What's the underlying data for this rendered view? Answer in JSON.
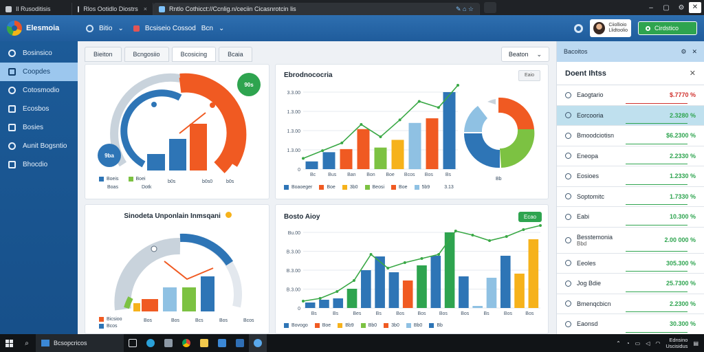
{
  "browser": {
    "tabs": [
      {
        "title": "Il Rusoditisis",
        "active": false
      },
      {
        "title": "Rlos Ootidlo Diostrs",
        "active": false
      },
      {
        "title": "Rntlo Cothicct://Ccnlig.n/ceciin Cicasnrotcin lis",
        "active": true
      }
    ]
  },
  "app": {
    "brand": "Elesmoia",
    "nav": [
      {
        "label": "Bitio"
      },
      {
        "label": "Bcsiseio Cossod"
      },
      {
        "label": "Bcn"
      }
    ],
    "user": {
      "line1": "Ciiollioio",
      "line2": "Llidtoolio"
    },
    "cta_label": "Cirdstico"
  },
  "sidebar": {
    "items": [
      {
        "label": "Bosinsico"
      },
      {
        "label": "Coopdes"
      },
      {
        "label": "Cotosmodio"
      },
      {
        "label": "Ecosbos"
      },
      {
        "label": "Bosies"
      },
      {
        "label": "Aunit Bogsntio"
      },
      {
        "label": "Bhocdio"
      }
    ],
    "active_index": 1
  },
  "toolbar": {
    "tabs": [
      {
        "label": "Bieiton"
      },
      {
        "label": "Bcngosiio"
      },
      {
        "label": "Bcosicing"
      },
      {
        "label": "Bcaia"
      }
    ],
    "active_index": 2,
    "dropdown_label": "Beaton"
  },
  "colors": {
    "blue": "#2e75b6",
    "orange": "#f05a22",
    "green": "#7cc242",
    "lightblue": "#8fc1e3",
    "yellow": "#f6b21b",
    "darkgreen": "#2ea44f",
    "grey": "#c9d3dc"
  },
  "gauge1": {
    "badge_top": "90s",
    "badge_left": "9ba",
    "legend": [
      {
        "label": "Boeis",
        "sub": "Boas",
        "color": "#2e75b6"
      },
      {
        "label": "Boei",
        "sub": "Dotk",
        "color": "#7cc242"
      }
    ],
    "ticks": [
      "b0s",
      "b0s0",
      "b0s"
    ]
  },
  "gauge2": {
    "title": "Sinodeta Unponlain Inmsqani",
    "legend": [
      {
        "label": "Bicsioo",
        "color": "#f05a22"
      },
      {
        "label": "Bcos",
        "color": "#2e75b6"
      }
    ],
    "ticks": [
      "Bos",
      "Bos",
      "Bcs",
      "Bos",
      "Bcos"
    ]
  },
  "chart1": {
    "title": "Ebrodnococria",
    "button": "Eaio",
    "legend": [
      {
        "label": "Boaoeger",
        "color": "#2e75b6"
      },
      {
        "label": "Boe",
        "color": "#f05a22"
      },
      {
        "label": "3b0",
        "color": "#f6b21b"
      },
      {
        "label": "Beosi",
        "color": "#7cc242"
      },
      {
        "label": "Boe",
        "color": "#f05a22"
      },
      {
        "label": "5b9",
        "color": "#8fc1e3"
      },
      {
        "label": "3.13",
        "color": "#ffffff"
      }
    ],
    "pie_label": "Bb"
  },
  "chart2": {
    "title": "Bosto Aioy",
    "button": "Ecao",
    "legend": [
      {
        "label": "Bovogo",
        "color": "#2e75b6"
      },
      {
        "label": "Boe",
        "color": "#f05a22"
      },
      {
        "label": "Bb9",
        "color": "#f6b21b"
      },
      {
        "label": "Bb0",
        "color": "#7cc242"
      },
      {
        "label": "3b0",
        "color": "#f05a22"
      },
      {
        "label": "Bb0",
        "color": "#8fc1e3"
      },
      {
        "label": "Bb",
        "color": "#2e75b6"
      }
    ]
  },
  "chart_data": [
    {
      "type": "bar",
      "title": "Ebrodnococria",
      "yticks": [
        "0",
        "1.3.00",
        "1.3.00",
        "1.3.00",
        "3.3.00"
      ],
      "xticks": [
        "Bc",
        "Bus",
        "Ban",
        "Bon",
        "Boe",
        "Bcos",
        "Bos",
        "Bs"
      ],
      "ylim": [
        0,
        100
      ],
      "bars": [
        {
          "value": 10,
          "color": "#2e75b6"
        },
        {
          "value": 22,
          "color": "#2e75b6"
        },
        {
          "value": 26,
          "color": "#f05a22"
        },
        {
          "value": 52,
          "color": "#f05a22"
        },
        {
          "value": 28,
          "color": "#7cc242"
        },
        {
          "value": 38,
          "color": "#f6b21b"
        },
        {
          "value": 60,
          "color": "#8fc1e3"
        },
        {
          "value": 66,
          "color": "#f05a22"
        },
        {
          "value": 100,
          "color": "#2e75b6"
        }
      ],
      "line": [
        14,
        24,
        34,
        58,
        42,
        64,
        88,
        80,
        112
      ]
    },
    {
      "type": "bar",
      "title": "Bosto Aioy",
      "yticks": [
        "0",
        "B.3.00",
        "B.3.00",
        "B.3.00",
        "Bu.00"
      ],
      "xticks": [
        "Bs",
        "Bs",
        "Bes",
        "Bs",
        "Bos",
        "Bos",
        "Bos",
        "Bos",
        "Bs",
        "Bos",
        "Bos"
      ],
      "ylim": [
        0,
        110
      ],
      "bars": [
        {
          "value": 8,
          "color": "#2e75b6"
        },
        {
          "value": 12,
          "color": "#2e75b6"
        },
        {
          "value": 14,
          "color": "#2e75b6"
        },
        {
          "value": 28,
          "color": "#2ea44f"
        },
        {
          "value": 55,
          "color": "#2e75b6"
        },
        {
          "value": 75,
          "color": "#2e75b6"
        },
        {
          "value": 52,
          "color": "#2e75b6"
        },
        {
          "value": 40,
          "color": "#f05a22"
        },
        {
          "value": 62,
          "color": "#2ea44f"
        },
        {
          "value": 76,
          "color": "#2e75b6"
        },
        {
          "value": 110,
          "color": "#2ea44f"
        },
        {
          "value": 46,
          "color": "#2e75b6"
        },
        {
          "value": 3,
          "color": "#8fc1e3"
        },
        {
          "value": 44,
          "color": "#8fc1e3"
        },
        {
          "value": 76,
          "color": "#2e75b6"
        },
        {
          "value": 50,
          "color": "#f6b21b"
        },
        {
          "value": 100,
          "color": "#f6b21b"
        }
      ],
      "line": [
        10,
        14,
        24,
        40,
        78,
        58,
        66,
        72,
        78,
        112,
        106,
        98,
        104,
        114,
        124
      ]
    }
  ],
  "right_panel": {
    "header": "Bacoitos",
    "subheader": "Doent Ihtss",
    "items": [
      {
        "label": "Eaogtario",
        "value": "$.7770 %",
        "value_color": "#d0312d",
        "underline": "#d0312d"
      },
      {
        "label": "Eorcooria",
        "value": "2.3280 %",
        "value_color": "#2ea44f",
        "underline": "#2ea44f",
        "active": true
      },
      {
        "label": "Bmoodciotisn",
        "value": "$6.2300 %",
        "value_color": "#2ea44f",
        "underline": "#2ea44f"
      },
      {
        "label": "Eneopa",
        "value": "2.2330 %",
        "value_color": "#2ea44f",
        "underline": "#2ea44f"
      },
      {
        "label": "Eosioes",
        "value": "1.2330 %",
        "value_color": "#2ea44f",
        "underline": "#2ea44f"
      },
      {
        "label": "Soptomitc",
        "value": "1.7330 %",
        "value_color": "#2ea44f",
        "underline": "#2ea44f"
      },
      {
        "label": "Eabi",
        "value": "10.300 %",
        "value_color": "#2ea44f",
        "underline": "#2ea44f"
      },
      {
        "label": "Besstemonia",
        "sub": "Bbd",
        "value": "2.00 000 %",
        "value_color": "#2ea44f",
        "underline": "#2ea44f"
      },
      {
        "label": "Eeoles",
        "value": "305.300 %",
        "value_color": "#2ea44f",
        "underline": "#2ea44f"
      },
      {
        "label": "Jog Bdie",
        "value": "25.7300 %",
        "value_color": "#2ea44f",
        "underline": "#2ea44f"
      },
      {
        "label": "Bmenqcbicn",
        "value": "2.2300 %",
        "value_color": "#2ea44f",
        "underline": "#2ea44f"
      },
      {
        "label": "Eaonsd",
        "value": "30.300 %",
        "value_color": "#2ea44f",
        "underline": "#2ea44f"
      }
    ]
  },
  "taskbar": {
    "app_label": "Bcsopcricos",
    "clock_time": "Ednsino",
    "clock_date": "Uscisidus"
  }
}
